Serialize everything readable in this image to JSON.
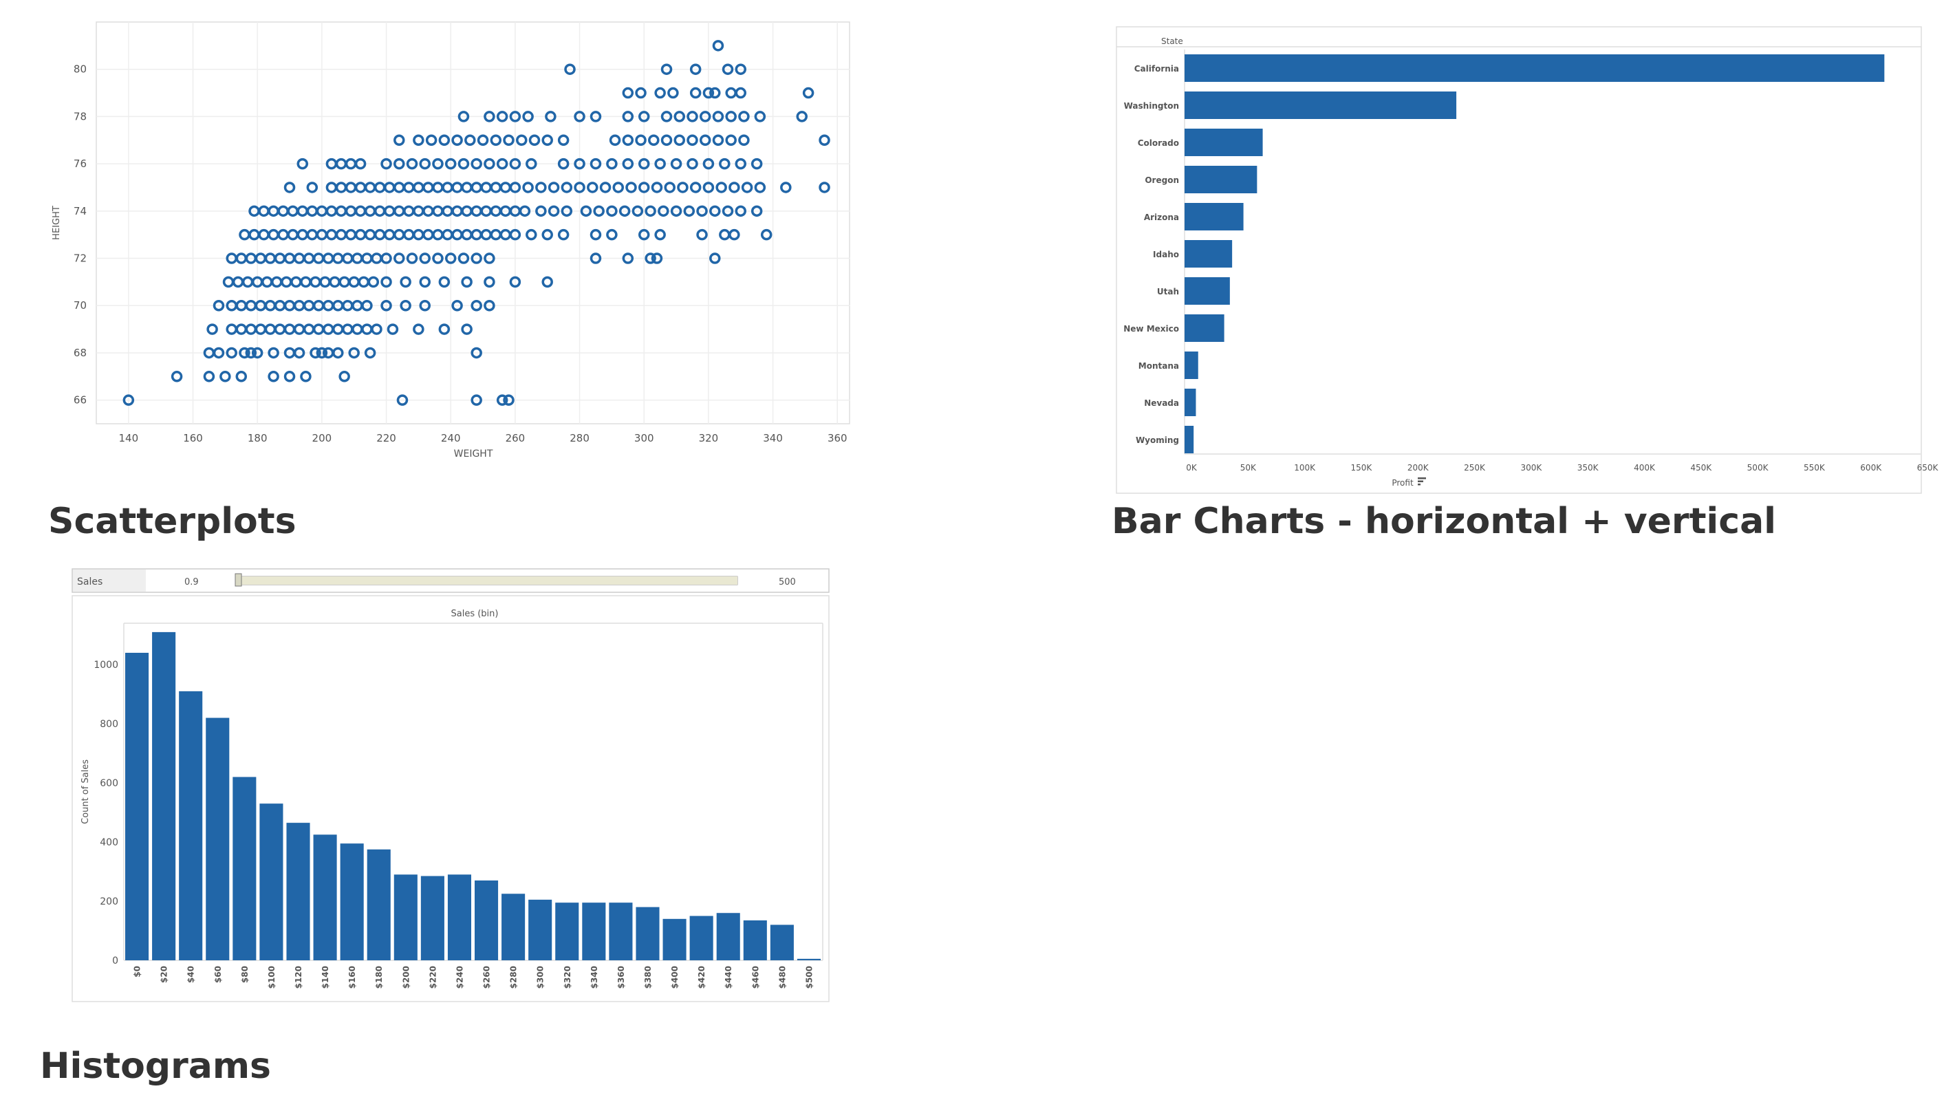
{
  "headings": {
    "scatter": "Scatterplots",
    "bar": "Bar Charts - horizontal + vertical",
    "histogram": "Histograms"
  },
  "theme": {
    "mark": "#2166a8",
    "grid": "#eeeeee",
    "frame": "#dddddd",
    "slider_track": "#e9e8d2"
  },
  "chart_data": [
    {
      "id": "scatter",
      "type": "scatter",
      "xlabel": "WEIGHT",
      "ylabel": "HEIGHT",
      "xlim": [
        130,
        364
      ],
      "ylim": [
        65,
        82
      ],
      "xticks": [
        140,
        160,
        180,
        200,
        220,
        240,
        260,
        280,
        300,
        320,
        340,
        360
      ],
      "yticks": [
        66,
        68,
        70,
        72,
        74,
        76,
        78,
        80
      ],
      "grid": true,
      "points": [
        [
          140,
          66
        ],
        [
          155,
          67
        ],
        [
          165,
          67
        ],
        [
          170,
          67
        ],
        [
          175,
          67
        ],
        [
          185,
          67
        ],
        [
          190,
          67
        ],
        [
          195,
          67
        ],
        [
          207,
          67
        ],
        [
          225,
          66
        ],
        [
          248,
          66
        ],
        [
          256,
          66
        ],
        [
          258,
          66
        ],
        [
          165,
          68
        ],
        [
          168,
          68
        ],
        [
          172,
          68
        ],
        [
          176,
          68
        ],
        [
          178,
          68
        ],
        [
          180,
          68
        ],
        [
          185,
          68
        ],
        [
          190,
          68
        ],
        [
          193,
          68
        ],
        [
          198,
          68
        ],
        [
          200,
          68
        ],
        [
          202,
          68
        ],
        [
          205,
          68
        ],
        [
          210,
          68
        ],
        [
          215,
          68
        ],
        [
          248,
          68
        ],
        [
          166,
          69
        ],
        [
          172,
          69
        ],
        [
          175,
          69
        ],
        [
          178,
          69
        ],
        [
          181,
          69
        ],
        [
          184,
          69
        ],
        [
          187,
          69
        ],
        [
          190,
          69
        ],
        [
          193,
          69
        ],
        [
          196,
          69
        ],
        [
          199,
          69
        ],
        [
          202,
          69
        ],
        [
          205,
          69
        ],
        [
          208,
          69
        ],
        [
          211,
          69
        ],
        [
          214,
          69
        ],
        [
          217,
          69
        ],
        [
          222,
          69
        ],
        [
          230,
          69
        ],
        [
          238,
          69
        ],
        [
          245,
          69
        ],
        [
          168,
          70
        ],
        [
          172,
          70
        ],
        [
          175,
          70
        ],
        [
          178,
          70
        ],
        [
          181,
          70
        ],
        [
          184,
          70
        ],
        [
          187,
          70
        ],
        [
          190,
          70
        ],
        [
          193,
          70
        ],
        [
          196,
          70
        ],
        [
          199,
          70
        ],
        [
          202,
          70
        ],
        [
          205,
          70
        ],
        [
          208,
          70
        ],
        [
          211,
          70
        ],
        [
          214,
          70
        ],
        [
          220,
          70
        ],
        [
          226,
          70
        ],
        [
          232,
          70
        ],
        [
          242,
          70
        ],
        [
          248,
          70
        ],
        [
          252,
          70
        ],
        [
          171,
          71
        ],
        [
          174,
          71
        ],
        [
          177,
          71
        ],
        [
          180,
          71
        ],
        [
          183,
          71
        ],
        [
          186,
          71
        ],
        [
          189,
          71
        ],
        [
          192,
          71
        ],
        [
          195,
          71
        ],
        [
          198,
          71
        ],
        [
          201,
          71
        ],
        [
          204,
          71
        ],
        [
          207,
          71
        ],
        [
          210,
          71
        ],
        [
          213,
          71
        ],
        [
          216,
          71
        ],
        [
          220,
          71
        ],
        [
          226,
          71
        ],
        [
          232,
          71
        ],
        [
          238,
          71
        ],
        [
          245,
          71
        ],
        [
          252,
          71
        ],
        [
          260,
          71
        ],
        [
          270,
          71
        ],
        [
          172,
          72
        ],
        [
          175,
          72
        ],
        [
          178,
          72
        ],
        [
          181,
          72
        ],
        [
          184,
          72
        ],
        [
          187,
          72
        ],
        [
          190,
          72
        ],
        [
          193,
          72
        ],
        [
          196,
          72
        ],
        [
          199,
          72
        ],
        [
          202,
          72
        ],
        [
          205,
          72
        ],
        [
          208,
          72
        ],
        [
          211,
          72
        ],
        [
          214,
          72
        ],
        [
          217,
          72
        ],
        [
          220,
          72
        ],
        [
          224,
          72
        ],
        [
          228,
          72
        ],
        [
          232,
          72
        ],
        [
          236,
          72
        ],
        [
          240,
          72
        ],
        [
          244,
          72
        ],
        [
          248,
          72
        ],
        [
          252,
          72
        ],
        [
          285,
          72
        ],
        [
          295,
          72
        ],
        [
          302,
          72
        ],
        [
          304,
          72
        ],
        [
          322,
          72
        ],
        [
          176,
          73
        ],
        [
          179,
          73
        ],
        [
          182,
          73
        ],
        [
          185,
          73
        ],
        [
          188,
          73
        ],
        [
          191,
          73
        ],
        [
          194,
          73
        ],
        [
          197,
          73
        ],
        [
          200,
          73
        ],
        [
          203,
          73
        ],
        [
          206,
          73
        ],
        [
          209,
          73
        ],
        [
          212,
          73
        ],
        [
          215,
          73
        ],
        [
          218,
          73
        ],
        [
          221,
          73
        ],
        [
          224,
          73
        ],
        [
          227,
          73
        ],
        [
          230,
          73
        ],
        [
          233,
          73
        ],
        [
          236,
          73
        ],
        [
          239,
          73
        ],
        [
          242,
          73
        ],
        [
          245,
          73
        ],
        [
          248,
          73
        ],
        [
          251,
          73
        ],
        [
          254,
          73
        ],
        [
          257,
          73
        ],
        [
          260,
          73
        ],
        [
          265,
          73
        ],
        [
          270,
          73
        ],
        [
          275,
          73
        ],
        [
          285,
          73
        ],
        [
          290,
          73
        ],
        [
          300,
          73
        ],
        [
          305,
          73
        ],
        [
          318,
          73
        ],
        [
          325,
          73
        ],
        [
          328,
          73
        ],
        [
          338,
          73
        ],
        [
          179,
          74
        ],
        [
          182,
          74
        ],
        [
          185,
          74
        ],
        [
          188,
          74
        ],
        [
          191,
          74
        ],
        [
          194,
          74
        ],
        [
          197,
          74
        ],
        [
          200,
          74
        ],
        [
          203,
          74
        ],
        [
          206,
          74
        ],
        [
          209,
          74
        ],
        [
          212,
          74
        ],
        [
          215,
          74
        ],
        [
          218,
          74
        ],
        [
          221,
          74
        ],
        [
          224,
          74
        ],
        [
          227,
          74
        ],
        [
          230,
          74
        ],
        [
          233,
          74
        ],
        [
          236,
          74
        ],
        [
          239,
          74
        ],
        [
          242,
          74
        ],
        [
          245,
          74
        ],
        [
          248,
          74
        ],
        [
          251,
          74
        ],
        [
          254,
          74
        ],
        [
          257,
          74
        ],
        [
          260,
          74
        ],
        [
          263,
          74
        ],
        [
          268,
          74
        ],
        [
          272,
          74
        ],
        [
          276,
          74
        ],
        [
          282,
          74
        ],
        [
          286,
          74
        ],
        [
          290,
          74
        ],
        [
          294,
          74
        ],
        [
          298,
          74
        ],
        [
          302,
          74
        ],
        [
          306,
          74
        ],
        [
          310,
          74
        ],
        [
          314,
          74
        ],
        [
          318,
          74
        ],
        [
          322,
          74
        ],
        [
          326,
          74
        ],
        [
          330,
          74
        ],
        [
          335,
          74
        ],
        [
          190,
          75
        ],
        [
          197,
          75
        ],
        [
          203,
          75
        ],
        [
          206,
          75
        ],
        [
          209,
          75
        ],
        [
          212,
          75
        ],
        [
          215,
          75
        ],
        [
          218,
          75
        ],
        [
          221,
          75
        ],
        [
          224,
          75
        ],
        [
          227,
          75
        ],
        [
          230,
          75
        ],
        [
          233,
          75
        ],
        [
          236,
          75
        ],
        [
          239,
          75
        ],
        [
          242,
          75
        ],
        [
          245,
          75
        ],
        [
          248,
          75
        ],
        [
          251,
          75
        ],
        [
          254,
          75
        ],
        [
          257,
          75
        ],
        [
          260,
          75
        ],
        [
          264,
          75
        ],
        [
          268,
          75
        ],
        [
          272,
          75
        ],
        [
          276,
          75
        ],
        [
          280,
          75
        ],
        [
          284,
          75
        ],
        [
          288,
          75
        ],
        [
          292,
          75
        ],
        [
          296,
          75
        ],
        [
          300,
          75
        ],
        [
          304,
          75
        ],
        [
          308,
          75
        ],
        [
          312,
          75
        ],
        [
          316,
          75
        ],
        [
          320,
          75
        ],
        [
          324,
          75
        ],
        [
          328,
          75
        ],
        [
          332,
          75
        ],
        [
          336,
          75
        ],
        [
          344,
          75
        ],
        [
          356,
          75
        ],
        [
          194,
          76
        ],
        [
          203,
          76
        ],
        [
          206,
          76
        ],
        [
          209,
          76
        ],
        [
          212,
          76
        ],
        [
          220,
          76
        ],
        [
          224,
          76
        ],
        [
          228,
          76
        ],
        [
          232,
          76
        ],
        [
          236,
          76
        ],
        [
          240,
          76
        ],
        [
          244,
          76
        ],
        [
          248,
          76
        ],
        [
          252,
          76
        ],
        [
          256,
          76
        ],
        [
          260,
          76
        ],
        [
          265,
          76
        ],
        [
          275,
          76
        ],
        [
          280,
          76
        ],
        [
          285,
          76
        ],
        [
          290,
          76
        ],
        [
          295,
          76
        ],
        [
          300,
          76
        ],
        [
          305,
          76
        ],
        [
          310,
          76
        ],
        [
          315,
          76
        ],
        [
          320,
          76
        ],
        [
          325,
          76
        ],
        [
          330,
          76
        ],
        [
          335,
          76
        ],
        [
          224,
          77
        ],
        [
          230,
          77
        ],
        [
          234,
          77
        ],
        [
          238,
          77
        ],
        [
          242,
          77
        ],
        [
          246,
          77
        ],
        [
          250,
          77
        ],
        [
          254,
          77
        ],
        [
          258,
          77
        ],
        [
          262,
          77
        ],
        [
          266,
          77
        ],
        [
          270,
          77
        ],
        [
          275,
          77
        ],
        [
          291,
          77
        ],
        [
          295,
          77
        ],
        [
          299,
          77
        ],
        [
          303,
          77
        ],
        [
          307,
          77
        ],
        [
          311,
          77
        ],
        [
          315,
          77
        ],
        [
          319,
          77
        ],
        [
          323,
          77
        ],
        [
          327,
          77
        ],
        [
          331,
          77
        ],
        [
          356,
          77
        ],
        [
          244,
          78
        ],
        [
          252,
          78
        ],
        [
          256,
          78
        ],
        [
          260,
          78
        ],
        [
          264,
          78
        ],
        [
          271,
          78
        ],
        [
          280,
          78
        ],
        [
          285,
          78
        ],
        [
          295,
          78
        ],
        [
          300,
          78
        ],
        [
          307,
          78
        ],
        [
          311,
          78
        ],
        [
          315,
          78
        ],
        [
          319,
          78
        ],
        [
          323,
          78
        ],
        [
          327,
          78
        ],
        [
          331,
          78
        ],
        [
          336,
          78
        ],
        [
          349,
          78
        ],
        [
          295,
          79
        ],
        [
          299,
          79
        ],
        [
          305,
          79
        ],
        [
          309,
          79
        ],
        [
          316,
          79
        ],
        [
          320,
          79
        ],
        [
          322,
          79
        ],
        [
          327,
          79
        ],
        [
          330,
          79
        ],
        [
          351,
          79
        ],
        [
          277,
          80
        ],
        [
          307,
          80
        ],
        [
          316,
          80
        ],
        [
          326,
          80
        ],
        [
          330,
          80
        ],
        [
          323,
          81
        ]
      ]
    },
    {
      "id": "bar",
      "type": "bar",
      "orientation": "horizontal",
      "header": "State",
      "xlabel": "Profit",
      "xlim": [
        0,
        650000
      ],
      "xticks": [
        "0K",
        "50K",
        "100K",
        "150K",
        "200K",
        "250K",
        "300K",
        "350K",
        "400K",
        "450K",
        "500K",
        "550K",
        "600K",
        "650K"
      ],
      "categories": [
        "California",
        "Washington",
        "Colorado",
        "Oregon",
        "Arizona",
        "Idaho",
        "Utah",
        "New Mexico",
        "Montana",
        "Nevada",
        "Wyoming"
      ],
      "values": [
        618000,
        240000,
        69000,
        64000,
        52000,
        42000,
        40000,
        35000,
        12000,
        10000,
        8000
      ]
    },
    {
      "id": "histogram",
      "type": "bar",
      "orientation": "vertical",
      "filter": {
        "label": "Sales",
        "min": "0.9",
        "max": "500",
        "level": 1.0
      },
      "title": "Sales (bin)",
      "ylabel": "Count of Sales",
      "ylim": [
        0,
        1140
      ],
      "yticks": [
        0,
        200,
        400,
        600,
        800,
        1000
      ],
      "categories": [
        "$0",
        "$20",
        "$40",
        "$60",
        "$80",
        "$100",
        "$120",
        "$140",
        "$160",
        "$180",
        "$200",
        "$220",
        "$240",
        "$260",
        "$280",
        "$300",
        "$320",
        "$340",
        "$360",
        "$380",
        "$400",
        "$420",
        "$440",
        "$460",
        "$480",
        "$500"
      ],
      "values": [
        1040,
        1110,
        910,
        820,
        620,
        530,
        465,
        425,
        395,
        375,
        290,
        285,
        290,
        270,
        225,
        205,
        195,
        195,
        195,
        180,
        140,
        150,
        160,
        135,
        120,
        5
      ]
    }
  ]
}
